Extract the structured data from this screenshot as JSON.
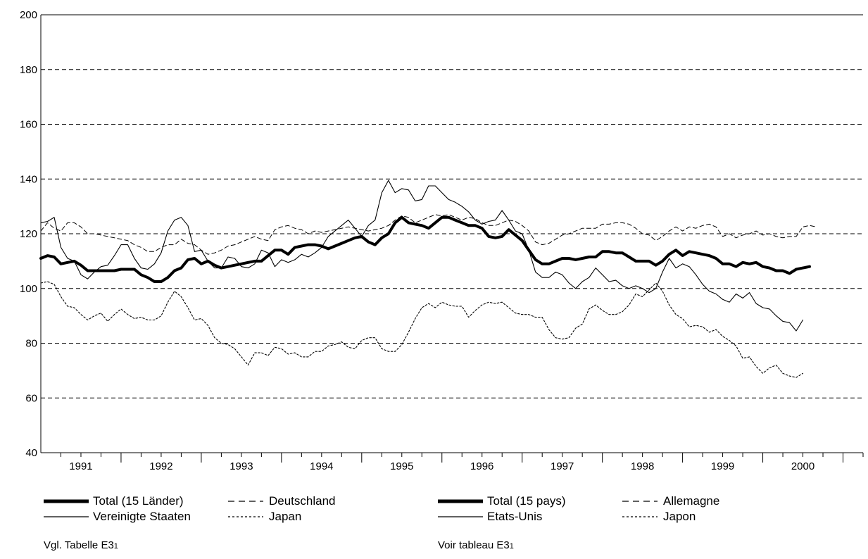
{
  "chart_data": {
    "type": "line",
    "title": "",
    "xlabel": "",
    "ylabel": "",
    "ylim": [
      40,
      200
    ],
    "yticks": [
      40,
      60,
      80,
      100,
      120,
      140,
      160,
      180,
      200
    ],
    "xticks": [
      "1991",
      "1992",
      "1993",
      "1994",
      "1995",
      "1996",
      "1997",
      "1998",
      "1999",
      "2000"
    ],
    "x_start": "1991-01",
    "x_frequency": "monthly",
    "grid": "horizontal-dashed",
    "series": [
      {
        "name": "Total (15 Länder)",
        "style": "thick-solid",
        "values": [
          111,
          112,
          111.5,
          109,
          109.5,
          110,
          108.5,
          106.5,
          106.5,
          106.5,
          106.5,
          106.5,
          107,
          107,
          107,
          105,
          104,
          102.5,
          102.5,
          104,
          106.5,
          107.5,
          110.5,
          111,
          109,
          110,
          108.5,
          107.5,
          108,
          108.5,
          109,
          109.5,
          110,
          110,
          112,
          114,
          114,
          112.5,
          115,
          115.5,
          116,
          116,
          115.5,
          114.5,
          115.5,
          116.5,
          117.5,
          118.5,
          119,
          117,
          116,
          118.5,
          120,
          124,
          126,
          124,
          123.5,
          123,
          122,
          124,
          126,
          126,
          125,
          124,
          123,
          123,
          122,
          119,
          118.5,
          119,
          121.5,
          119.5,
          117.5,
          114,
          110.5,
          109,
          109,
          110,
          111,
          111,
          110.5,
          111,
          111.5,
          111.5,
          113.5,
          113.5,
          113,
          113,
          111.5,
          110,
          110,
          110,
          108.5,
          110,
          112.5,
          114,
          112,
          113.5,
          113,
          112.5,
          112,
          111,
          109,
          109,
          108,
          109.5,
          109,
          109.5,
          108,
          107.5,
          106.5,
          106.5,
          105.5,
          107,
          107.5,
          108
        ]
      },
      {
        "name": "Deutschland",
        "style": "dashed",
        "values": [
          121,
          124,
          122,
          121,
          124,
          124,
          122.5,
          120,
          120,
          119.5,
          119,
          118.5,
          118,
          117.5,
          116,
          115,
          113.5,
          113.5,
          115,
          116,
          116,
          118,
          116.5,
          116,
          114,
          112.5,
          113,
          114,
          115.5,
          116,
          117,
          118,
          119,
          118,
          117.5,
          121.5,
          122.5,
          123,
          122,
          121.5,
          120,
          121,
          120.5,
          121,
          121.5,
          122,
          122.5,
          122,
          121.5,
          121,
          121.5,
          122,
          123,
          125,
          126.5,
          126,
          124,
          125,
          126,
          127,
          126.5,
          127,
          126,
          125,
          126,
          125.5,
          124,
          123,
          123,
          124,
          125,
          124.5,
          123,
          121,
          117,
          116,
          116.5,
          118,
          119.5,
          120,
          121,
          122,
          122,
          122,
          123.5,
          123.5,
          124,
          124,
          123.5,
          122,
          120,
          119.5,
          117.5,
          119,
          121,
          122.5,
          121,
          122.5,
          122,
          123,
          123.5,
          122.5,
          119,
          120,
          118.5,
          119.5,
          120,
          121,
          119.5,
          120,
          119,
          118.5,
          119,
          119,
          122.5,
          123,
          122.5
        ]
      },
      {
        "name": "Vereinigte Staaten",
        "style": "thin-solid",
        "values": [
          124,
          124.5,
          126,
          115,
          111,
          110,
          105,
          103.5,
          106,
          108,
          108.5,
          112,
          116,
          116,
          111,
          107.5,
          107,
          109,
          113,
          121,
          125,
          126,
          123,
          113.5,
          114,
          110,
          107.5,
          107.5,
          111.5,
          111,
          108,
          107.5,
          109,
          114,
          113,
          108,
          110.5,
          109.5,
          110.5,
          112.5,
          111.5,
          113,
          115,
          119,
          121,
          123,
          125,
          122,
          119,
          123,
          125,
          135,
          139.5,
          135,
          136.5,
          136,
          132,
          132.5,
          137.5,
          137.5,
          135,
          132.5,
          131.5,
          130,
          128,
          125,
          123.5,
          124.5,
          125,
          128.5,
          125,
          121,
          120,
          114,
          106,
          104,
          104,
          106,
          105,
          102,
          100,
          102.5,
          104,
          107.5,
          105,
          102.5,
          103,
          101,
          100,
          101,
          100,
          98.5,
          100,
          106,
          111,
          107.5,
          109,
          108,
          105,
          101.5,
          99,
          98,
          96,
          95,
          98,
          96.5,
          98.5,
          94.5,
          93,
          92.5,
          90,
          88,
          87.5,
          84.5,
          88.5
        ]
      },
      {
        "name": "Japan",
        "style": "dotted",
        "values": [
          102,
          102.5,
          101.5,
          97,
          93.5,
          93,
          90.5,
          88.5,
          90,
          91,
          88,
          90.5,
          92.5,
          90.5,
          89,
          89.5,
          88.5,
          88.5,
          90,
          95,
          99,
          97,
          93,
          88.5,
          89,
          86.5,
          82,
          80,
          79.5,
          78,
          75,
          72,
          76.5,
          76.5,
          75.5,
          78.5,
          78,
          76,
          76.5,
          75,
          75,
          77,
          77,
          79,
          79.5,
          80.5,
          78.5,
          78,
          81,
          82,
          82,
          78,
          77,
          77,
          79.5,
          84,
          89,
          93,
          94.5,
          93,
          95,
          94,
          93.5,
          93.5,
          89.5,
          92,
          94,
          95,
          94.5,
          95,
          93,
          91,
          90.5,
          90.5,
          89.5,
          89.5,
          85,
          82,
          81.5,
          82,
          85.5,
          87,
          92.5,
          94,
          92,
          90.5,
          90.5,
          91.5,
          94,
          98,
          97,
          99.5,
          102,
          99,
          94,
          90.5,
          89,
          86,
          86.5,
          86,
          84,
          85,
          82.5,
          81,
          79,
          74.5,
          75,
          71.5,
          69,
          71,
          72,
          69,
          68,
          67.5,
          69
        ]
      }
    ],
    "legend": {
      "left": {
        "total": "Total (15 Länder)",
        "germany": "Deutschland",
        "usa": "Vereinigte Staaten",
        "japan": "Japan"
      },
      "right": {
        "total": "Total (15 pays)",
        "germany": "Allemagne",
        "usa": "Etats-Unis",
        "japan": "Japon"
      }
    },
    "notes": {
      "left_prefix": "Vgl. Tabelle E3",
      "left_sub": "1",
      "right_prefix": "Voir tableau E3",
      "right_sub": "1"
    }
  }
}
